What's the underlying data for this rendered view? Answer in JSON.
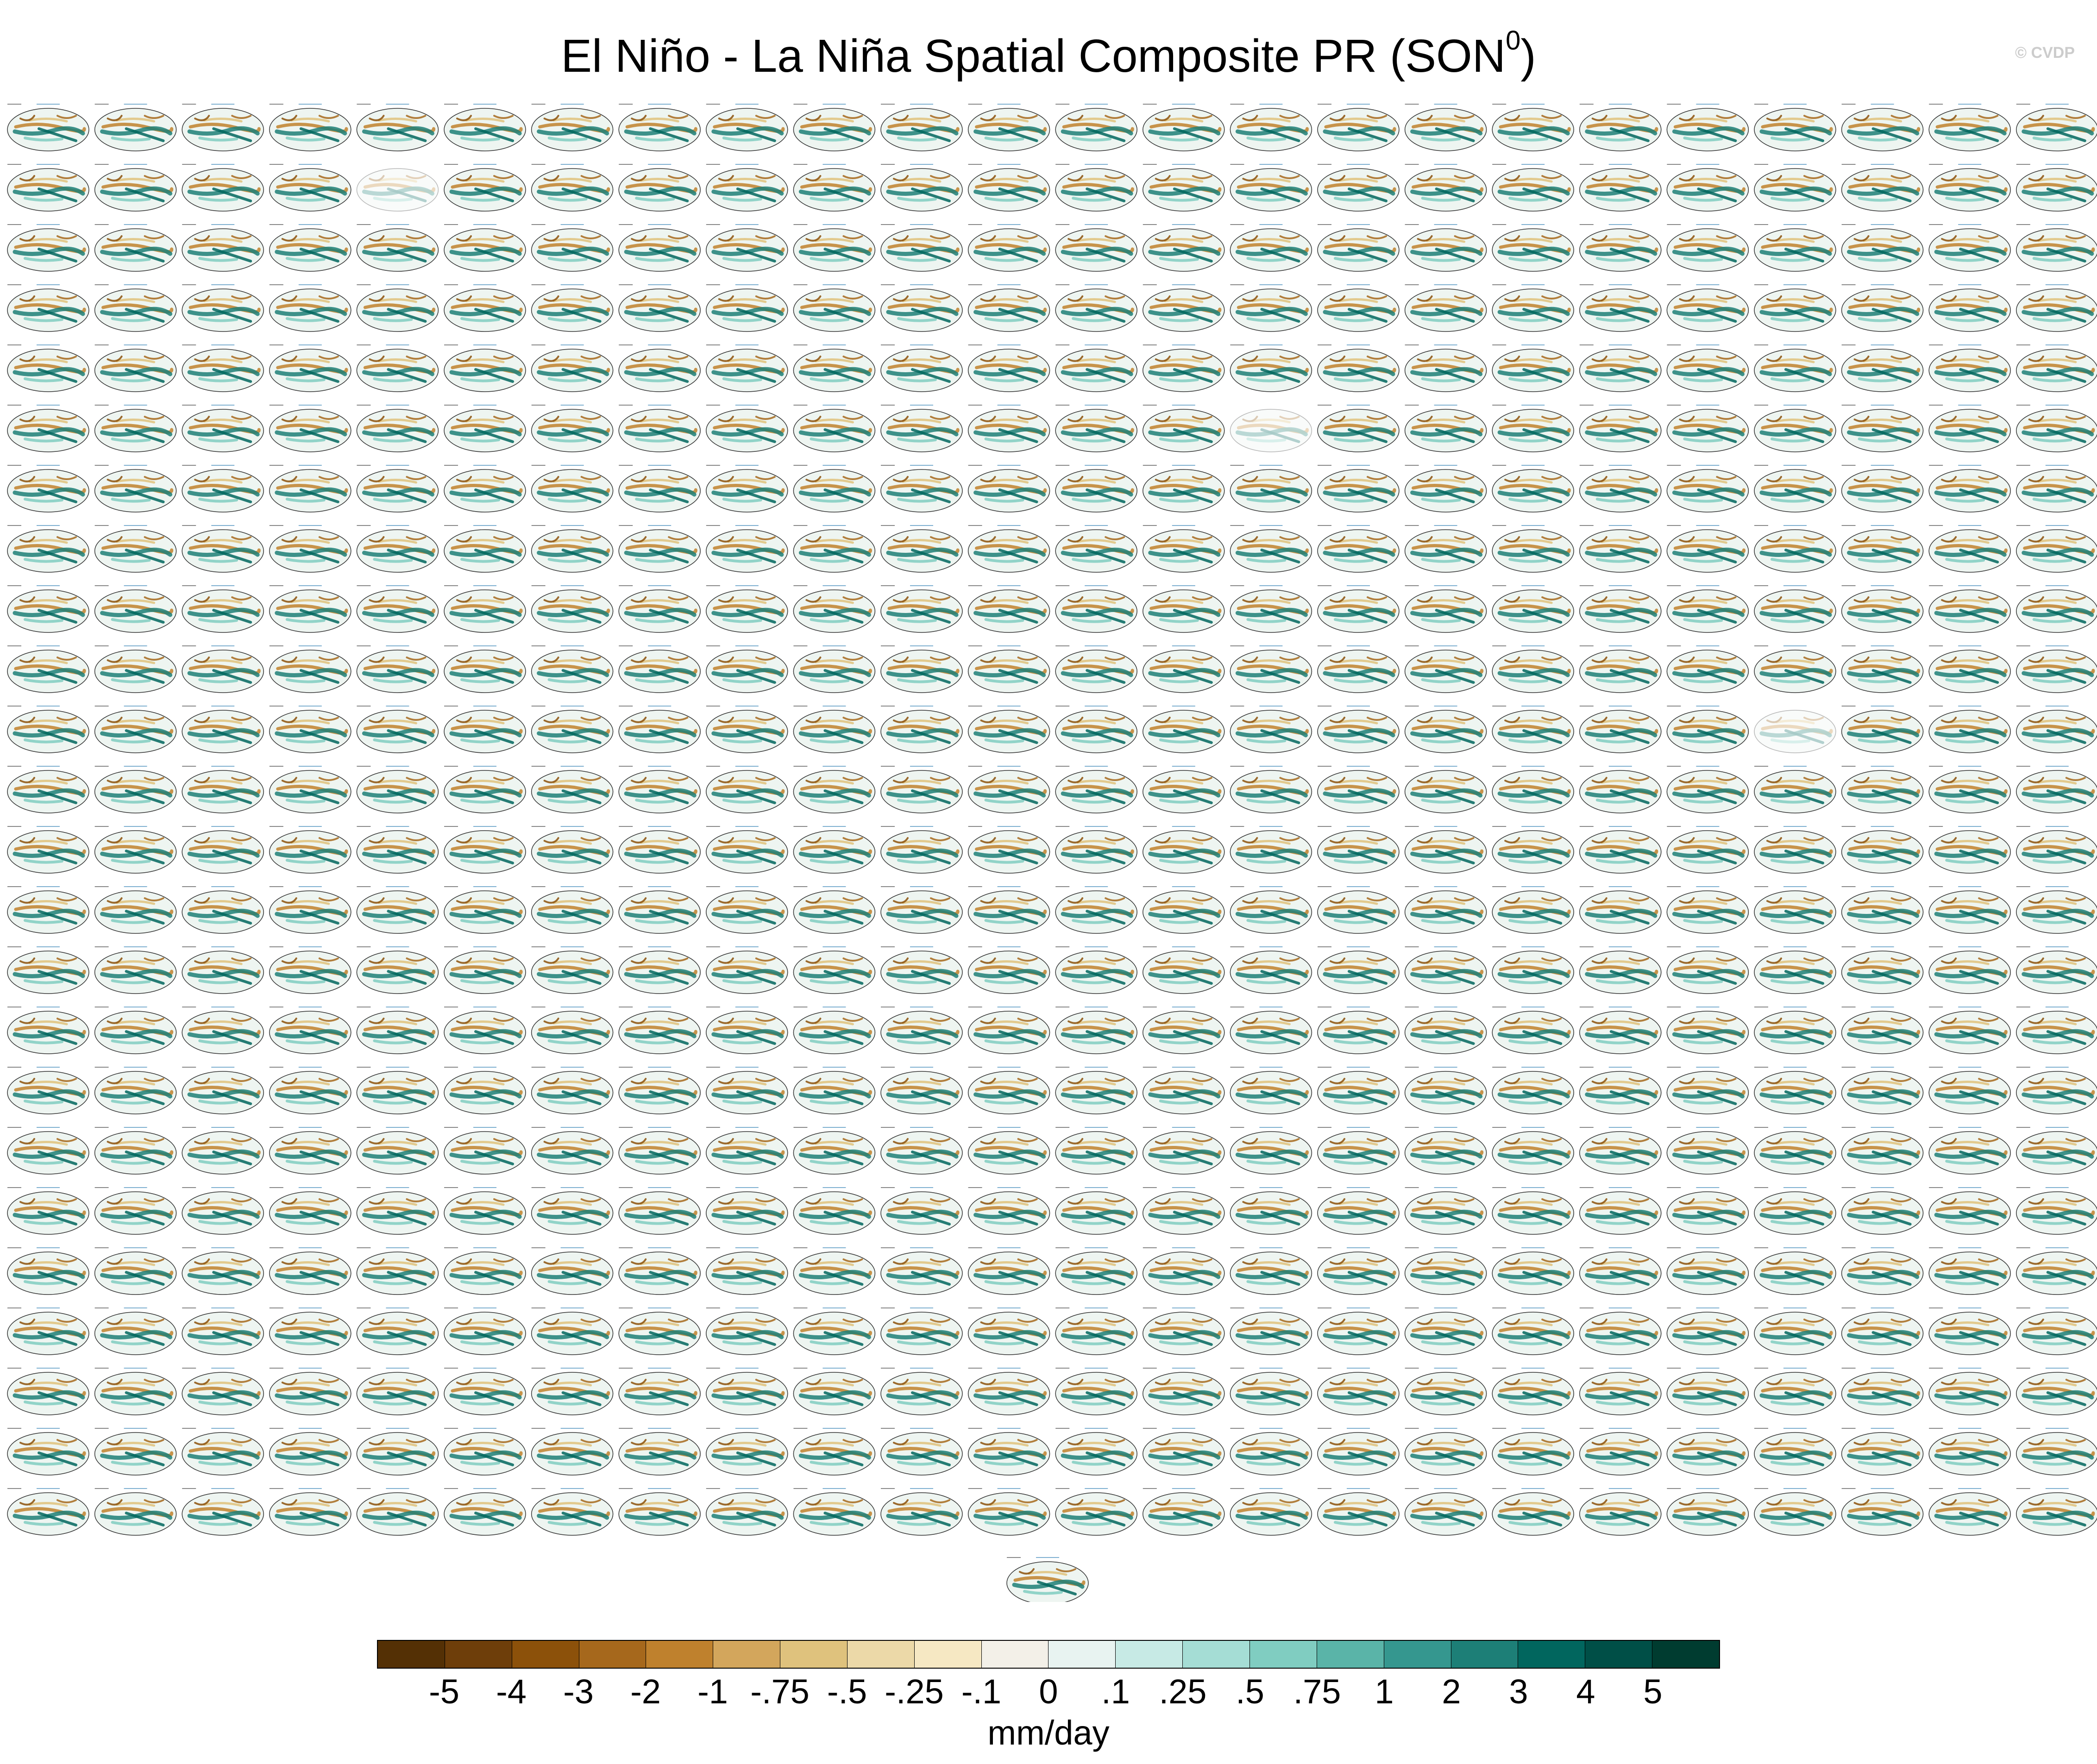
{
  "title": {
    "main": "El Niño - La Niña Spatial Composite PR (SON",
    "superscript": "0",
    "close": ")"
  },
  "watermark": "© CVDP",
  "grid": {
    "rows": 24,
    "cols": 24,
    "extra_panels": 1,
    "partial_panels": [
      {
        "row": 1,
        "col": 4
      },
      {
        "row": 5,
        "col": 14
      },
      {
        "row": 10,
        "col": 20
      }
    ]
  },
  "colorbar": {
    "colors": [
      "#543005",
      "#6e3e0a",
      "#8c510a",
      "#a6681c",
      "#bf812d",
      "#d3a65c",
      "#dfc27d",
      "#ecd9a8",
      "#f6e8c3",
      "#f3f0e8",
      "#e8f3f1",
      "#c7eae5",
      "#a5ddd5",
      "#80cdc1",
      "#5ab4a8",
      "#35978f",
      "#1d7f77",
      "#01665e",
      "#004f47",
      "#003c30"
    ],
    "labels": [
      "-5",
      "-4",
      "-3",
      "-2",
      "-1",
      "-.75",
      "-.5",
      "-.25",
      "-.1",
      "0",
      ".1",
      ".25",
      ".5",
      ".75",
      "1",
      "2",
      "3",
      "4",
      "5"
    ],
    "units": "mm/day"
  }
}
